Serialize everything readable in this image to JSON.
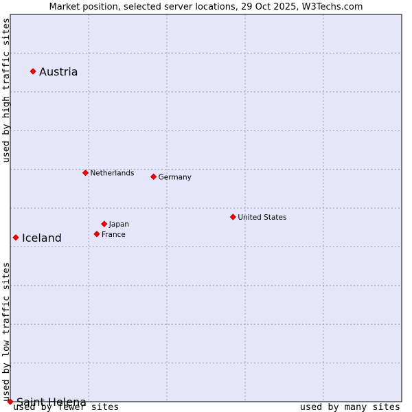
{
  "chart_data": {
    "type": "scatter",
    "title": "Market position, selected server locations, 29 Oct 2025, W3Techs.com",
    "x_axis": {
      "left_label": "used by fewer sites",
      "right_label": "used by many sites",
      "range": [
        0,
        100
      ]
    },
    "y_axis": {
      "top_label": "used by high traffic sites",
      "bottom_label": "used by low traffic sites",
      "range": [
        0,
        100
      ]
    },
    "grid": true,
    "colors": {
      "plot_background": "#e6e6fa",
      "grid": "#9a9ab4",
      "border": "#000000",
      "marker_fill": "#ff0000",
      "marker_stroke": "#b00000"
    },
    "points": [
      {
        "name": "Austria",
        "x": 5.8,
        "y": 85.3,
        "emphasis": true
      },
      {
        "name": "Netherlands",
        "x": 19.2,
        "y": 59.1,
        "emphasis": false
      },
      {
        "name": "Germany",
        "x": 36.6,
        "y": 58.1,
        "emphasis": false
      },
      {
        "name": "United States",
        "x": 56.9,
        "y": 47.7,
        "emphasis": false
      },
      {
        "name": "Japan",
        "x": 24.0,
        "y": 45.9,
        "emphasis": false
      },
      {
        "name": "France",
        "x": 22.1,
        "y": 43.3,
        "emphasis": false
      },
      {
        "name": "Iceland",
        "x": 1.4,
        "y": 42.4,
        "emphasis": true
      },
      {
        "name": "Saint Helena",
        "x": 0.0,
        "y": 0.0,
        "emphasis": true
      }
    ]
  }
}
